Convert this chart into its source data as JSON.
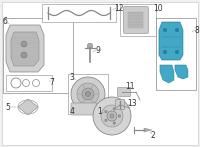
{
  "fig_bg": "#f0f0f0",
  "callout_color": "#333333",
  "box_outline": "#888888",
  "component_color": "#888888",
  "part8_color": "#2299bb",
  "white": "#ffffff"
}
